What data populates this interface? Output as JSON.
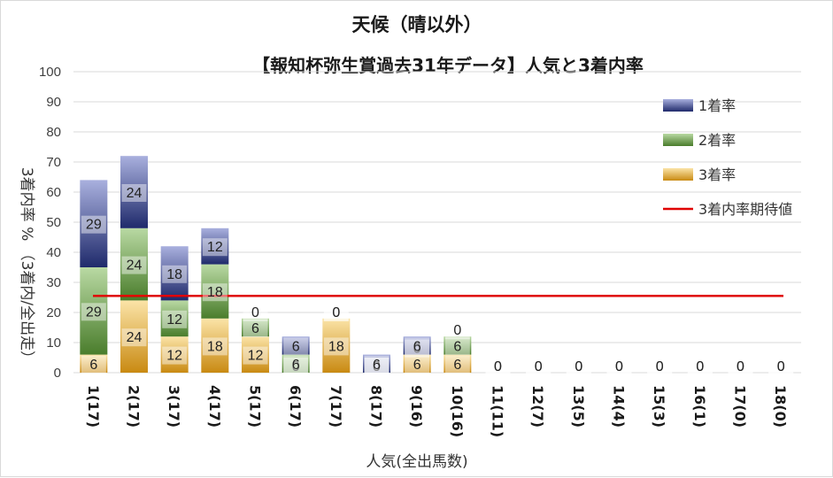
{
  "chart_data": {
    "type": "bar",
    "stacked": true,
    "title": "天候（晴以外）",
    "subtitle": "【報知杯弥生賞過去31年データ】人気と3着内率",
    "xlabel": "人気(全出馬数)",
    "ylabel": "3着内率 %  （3着内/全出走）",
    "ylim": [
      0,
      100
    ],
    "yticks": [
      0,
      10,
      20,
      30,
      40,
      50,
      60,
      70,
      80,
      90,
      100
    ],
    "grid": true,
    "legend_position": "top-right",
    "categories": [
      "1(17)",
      "2(17)",
      "3(17)",
      "4(17)",
      "5(17)",
      "6(17)",
      "7(17)",
      "8(17)",
      "9(16)",
      "10(16)",
      "11(11)",
      "12(7)",
      "13(5)",
      "14(4)",
      "15(3)",
      "16(1)",
      "17(0)",
      "18(0)"
    ],
    "series": [
      {
        "name": "3着率",
        "values": [
          6,
          24,
          12,
          18,
          12,
          0,
          18,
          0,
          6,
          6,
          0,
          0,
          0,
          0,
          0,
          0,
          0,
          0
        ],
        "color": "#e8b84a"
      },
      {
        "name": "2着率",
        "values": [
          29,
          24,
          12,
          18,
          6,
          6,
          0,
          0,
          0,
          6,
          0,
          0,
          0,
          0,
          0,
          0,
          0,
          0
        ],
        "color": "#5f9a3e"
      },
      {
        "name": "1着率",
        "values": [
          29,
          24,
          18,
          12,
          0,
          6,
          0,
          6,
          6,
          0,
          0,
          0,
          0,
          0,
          0,
          0,
          0,
          0
        ],
        "color": "#2f3f8f"
      }
    ],
    "reference_line": {
      "name": "3着内率期待値",
      "value": 25.5,
      "color": "#e00000"
    }
  }
}
